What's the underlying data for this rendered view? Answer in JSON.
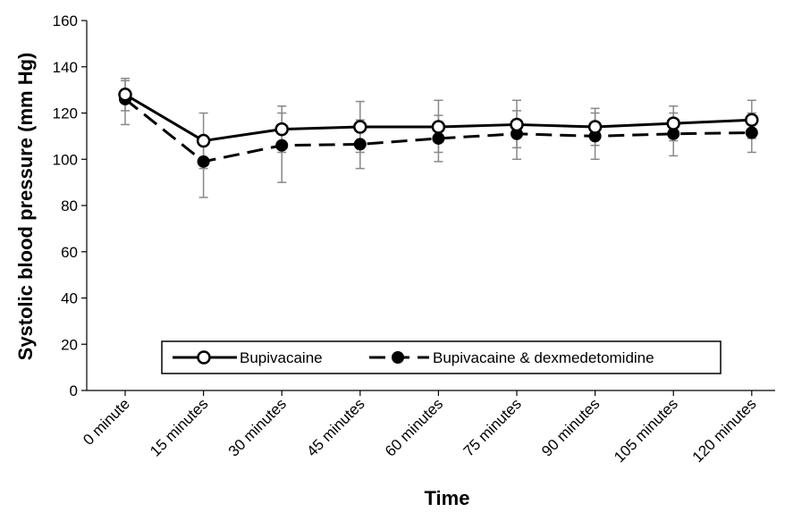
{
  "chart_data": {
    "type": "line",
    "title": "",
    "xlabel": "Time",
    "ylabel": "Systolic blood pressure (mm Hg)",
    "ylim": [
      0,
      160
    ],
    "yticks": [
      0,
      20,
      40,
      60,
      80,
      100,
      120,
      140,
      160
    ],
    "grid": false,
    "legend_position": "bottom-center",
    "categories": [
      "0 minute",
      "15 minutes",
      "30 minutes",
      "45 minutes",
      "60 minutes",
      "75 minutes",
      "90 minutes",
      "105 minutes",
      "120 minutes"
    ],
    "series": [
      {
        "name": "Bupivacaine",
        "marker": "open-circle",
        "line_style": "solid",
        "values": [
          128,
          108,
          113,
          114,
          114,
          115,
          114,
          115.5,
          117
        ],
        "error_low": [
          121,
          96,
          103,
          103,
          103,
          105,
          106,
          108,
          109
        ],
        "error_high": [
          135,
          120,
          123,
          125,
          125.5,
          125.5,
          122,
          123,
          125.5
        ]
      },
      {
        "name": "Bupivacaine & dexmedetomidine",
        "marker": "filled-circle",
        "line_style": "dashed",
        "values": [
          126,
          99,
          106,
          106.5,
          109,
          111,
          110,
          111,
          111.5
        ],
        "error_low": [
          115,
          83.5,
          90,
          96,
          99,
          100,
          100,
          101.5,
          103
        ],
        "error_high": [
          134,
          110,
          120,
          117,
          119,
          121,
          120,
          120,
          120
        ]
      }
    ]
  }
}
